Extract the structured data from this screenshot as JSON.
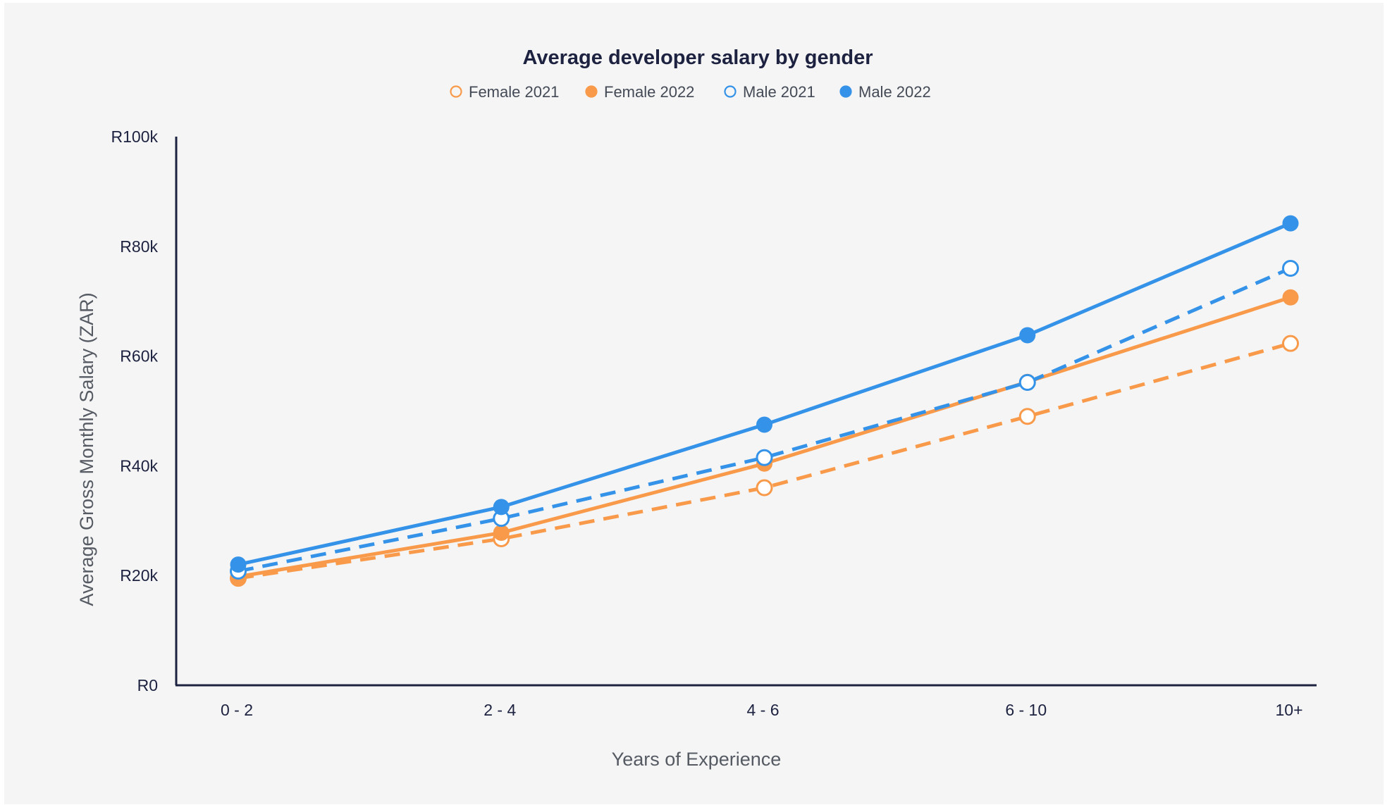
{
  "chart_data": {
    "type": "line",
    "title": "Average developer salary by gender",
    "xlabel": "Years of Experience",
    "ylabel": "Average Gross Monthly Salary (ZAR)",
    "categories": [
      "0 - 2",
      "2 - 4",
      "4 - 6",
      "6 - 10",
      "10+"
    ],
    "ylim": [
      0,
      100000
    ],
    "yticks": [
      0,
      20000,
      40000,
      60000,
      80000,
      100000
    ],
    "ytick_labels": [
      "R0",
      "R20k",
      "R40k",
      "R60k",
      "R80k",
      "R100k"
    ],
    "grid": false,
    "legend_position": "top-center",
    "series": [
      {
        "name": "Female 2021",
        "color": "#f89a4a",
        "line": "dashed",
        "marker": "hollow",
        "values": [
          19500,
          26700,
          36000,
          49000,
          62300
        ]
      },
      {
        "name": "Female 2022",
        "color": "#f89a4a",
        "line": "solid",
        "marker": "filled",
        "values": [
          19800,
          27800,
          40400,
          55300,
          70700
        ]
      },
      {
        "name": "Male 2021",
        "color": "#3493e8",
        "line": "dashed",
        "marker": "hollow",
        "values": [
          20800,
          30400,
          41500,
          55200,
          76000
        ]
      },
      {
        "name": "Male 2022",
        "color": "#3493e8",
        "line": "solid",
        "marker": "filled",
        "values": [
          22000,
          32500,
          47500,
          63800,
          84200
        ]
      }
    ]
  }
}
